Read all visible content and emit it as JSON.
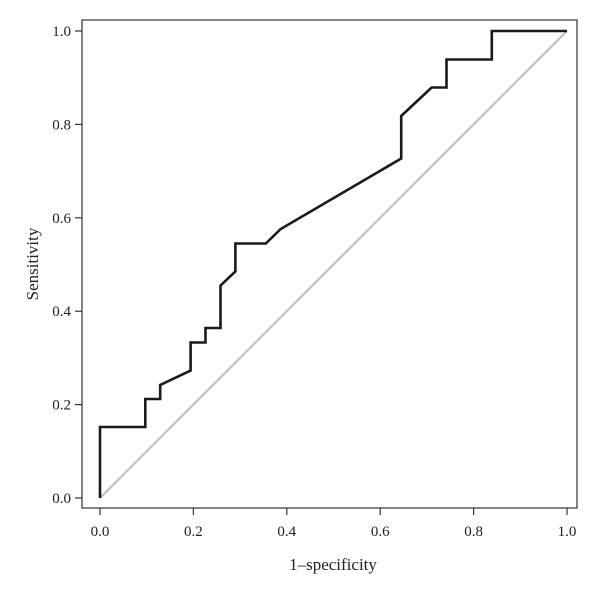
{
  "chart_data": {
    "type": "line",
    "title": "",
    "xlabel": "1–specificity",
    "ylabel": "Sensitivity",
    "xlim": [
      0,
      1
    ],
    "ylim": [
      0,
      1
    ],
    "x_ticks": [
      "0.0",
      "0.2",
      "0.4",
      "0.6",
      "0.8",
      "1.0"
    ],
    "y_ticks": [
      "0.0",
      "0.2",
      "0.4",
      "0.6",
      "0.8",
      "1.0"
    ],
    "grid": false,
    "legend": "none",
    "series": [
      {
        "color": "#1a1a1a",
        "x": [
          0.0,
          0.0,
          0.097,
          0.097,
          0.129,
          0.129,
          0.194,
          0.194,
          0.226,
          0.226,
          0.258,
          0.258,
          0.29,
          0.29,
          0.355,
          0.387,
          0.645,
          0.645,
          0.71,
          0.742,
          0.742,
          0.839,
          0.839,
          1.0
        ],
        "y": [
          0.0,
          0.152,
          0.152,
          0.212,
          0.212,
          0.242,
          0.273,
          0.333,
          0.333,
          0.364,
          0.364,
          0.455,
          0.485,
          0.545,
          0.545,
          0.576,
          0.727,
          0.818,
          0.879,
          0.879,
          0.939,
          0.939,
          1.0,
          1.0
        ]
      },
      {
        "color": "#bdbdbd",
        "x": [
          0,
          1
        ],
        "y": [
          0,
          1
        ]
      }
    ]
  }
}
